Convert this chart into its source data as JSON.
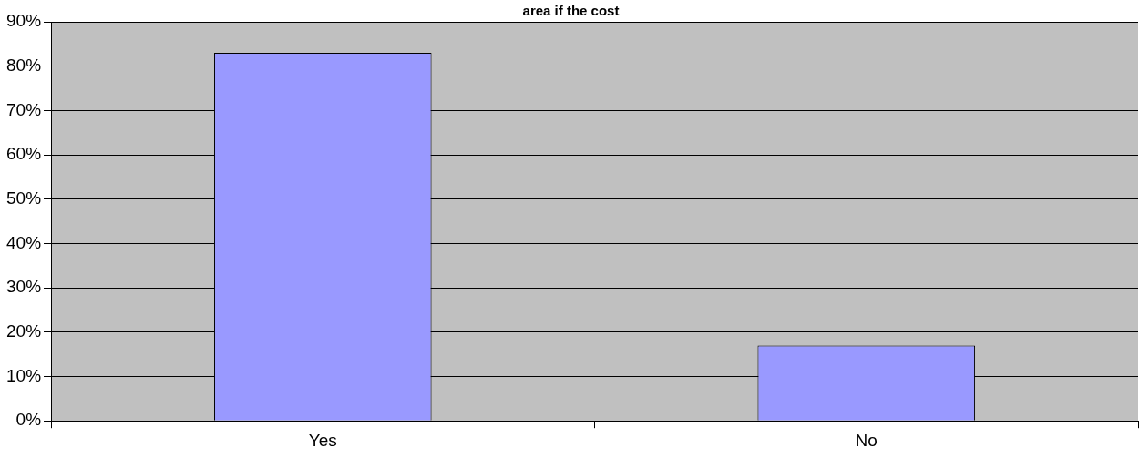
{
  "chart_data": {
    "type": "bar",
    "title": "area if the cost",
    "categories": [
      "Yes",
      "No"
    ],
    "values": [
      83,
      17
    ],
    "color": "#9999ff",
    "ylim": [
      0,
      90
    ],
    "yticks": [
      {
        "value": 0,
        "label": "0%"
      },
      {
        "value": 10,
        "label": "10%"
      },
      {
        "value": 20,
        "label": "20%"
      },
      {
        "value": 30,
        "label": "30%"
      },
      {
        "value": 40,
        "label": "40%"
      },
      {
        "value": 50,
        "label": "50%"
      },
      {
        "value": 60,
        "label": "60%"
      },
      {
        "value": 70,
        "label": "70%"
      },
      {
        "value": 80,
        "label": "80%"
      },
      {
        "value": 90,
        "label": "90%"
      }
    ],
    "grid": "y",
    "legend": false
  }
}
